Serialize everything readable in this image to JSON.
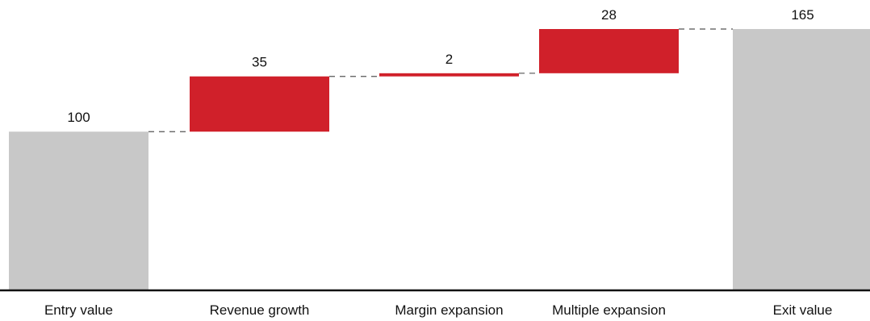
{
  "chart_data": {
    "type": "bar",
    "subtype": "waterfall",
    "title": "",
    "xlabel": "",
    "ylabel": "",
    "categories": [
      "Entry value",
      "Revenue growth",
      "Margin expansion",
      "Multiple expansion",
      "Exit value"
    ],
    "values": [
      100,
      35,
      2,
      28,
      165
    ],
    "value_labels": [
      "100",
      "35",
      "2",
      "28",
      "165"
    ],
    "kinds": [
      "total",
      "increase",
      "increase",
      "increase",
      "total"
    ],
    "ylim": [
      0,
      165
    ],
    "grid": false,
    "legend": "none",
    "connectors": "dashed",
    "colors": {
      "total": "#c8c8c8",
      "increase": "#d0202a",
      "connector": "#555555",
      "baseline": "#111111"
    }
  }
}
